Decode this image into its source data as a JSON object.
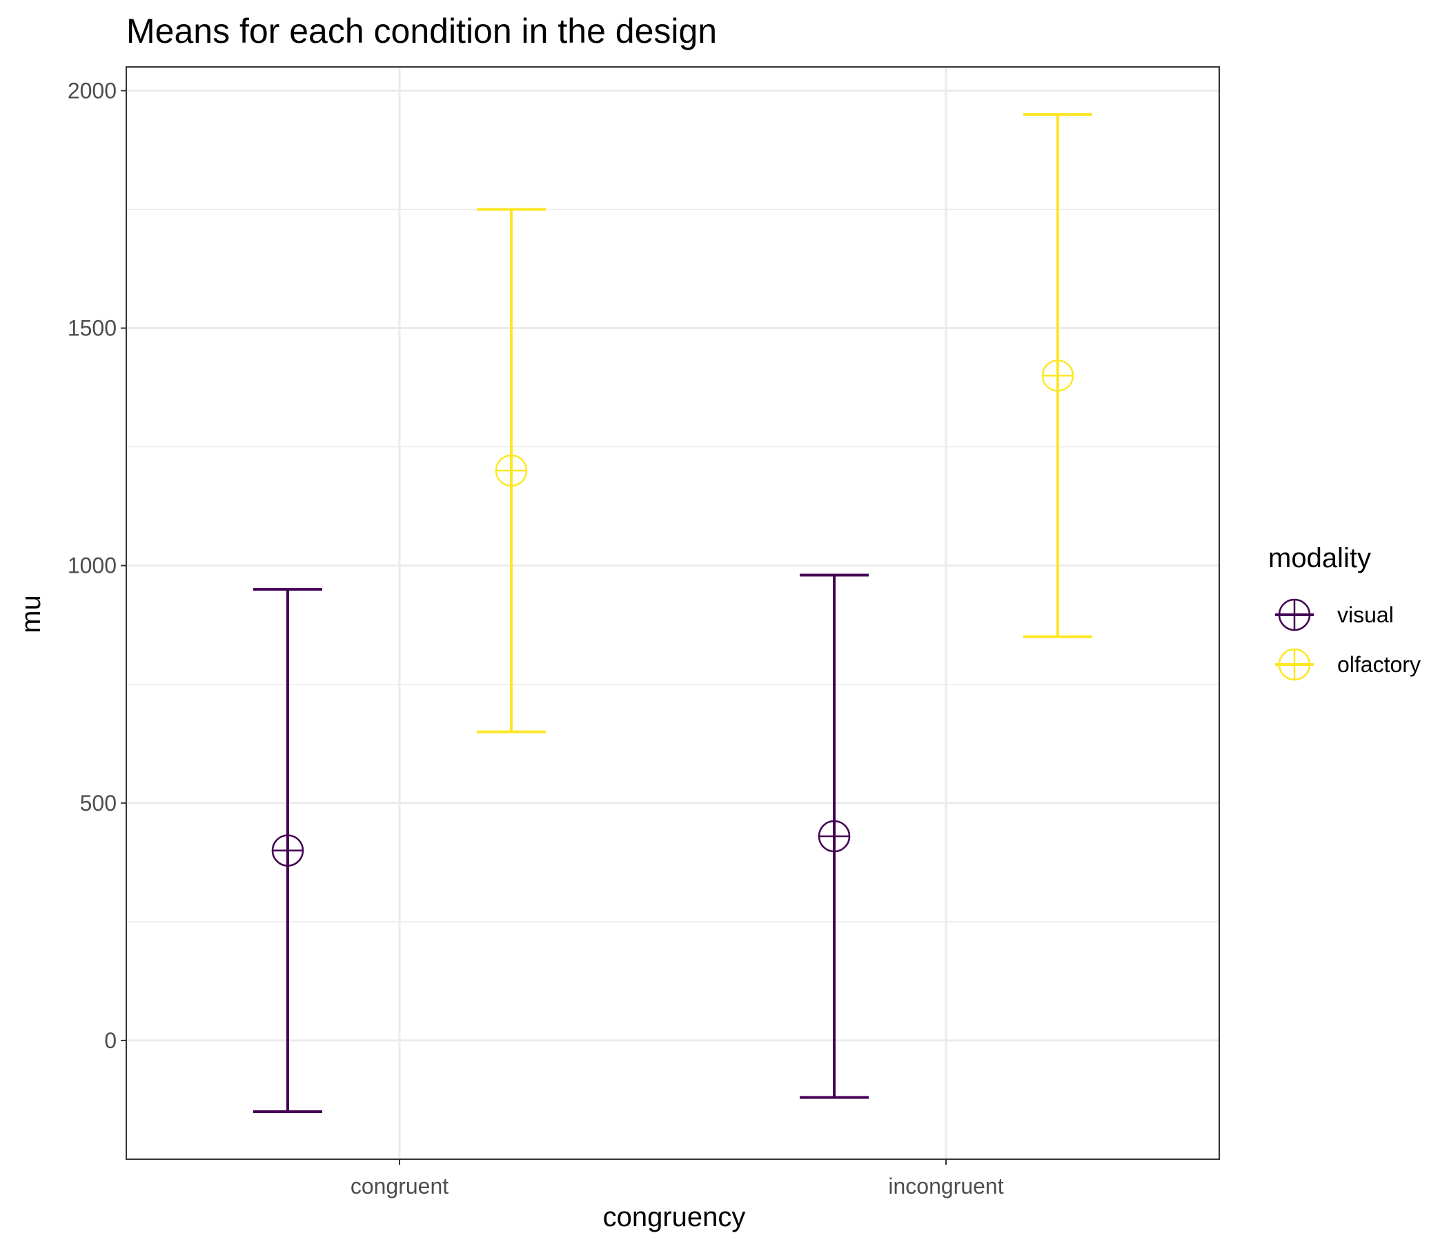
{
  "chart_data": {
    "type": "errorbar",
    "title": "Means for each condition in the design",
    "xlabel": "congruency",
    "ylabel": "mu",
    "categories": [
      "congruent",
      "incongruent"
    ],
    "ylim": [
      -250,
      2050
    ],
    "yticks": [
      0,
      500,
      1000,
      1500,
      2000
    ],
    "ytick_labels": [
      "0",
      "500",
      "1000",
      "1500",
      "2000"
    ],
    "grid": true,
    "legend": {
      "title": "modality",
      "position": "right"
    },
    "series": [
      {
        "name": "visual",
        "color": "#440154",
        "points": [
          {
            "category": "congruent",
            "mean": 400,
            "lower": -150,
            "upper": 950
          },
          {
            "category": "incongruent",
            "mean": 430,
            "lower": -120,
            "upper": 980
          }
        ]
      },
      {
        "name": "olfactory",
        "color": "#FDE725",
        "points": [
          {
            "category": "congruent",
            "mean": 1200,
            "lower": 650,
            "upper": 1750
          },
          {
            "category": "incongruent",
            "mean": 1400,
            "lower": 850,
            "upper": 1950
          }
        ]
      }
    ]
  }
}
